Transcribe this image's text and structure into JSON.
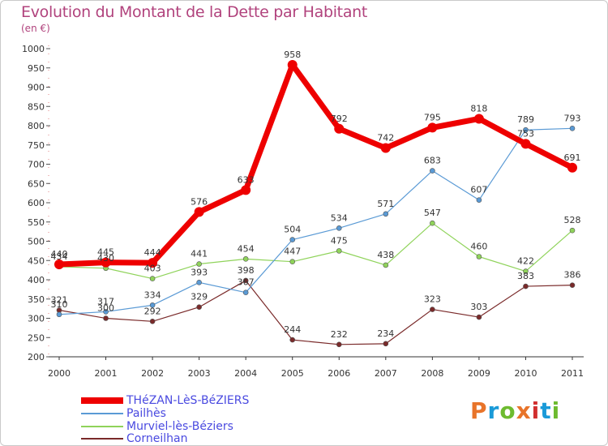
{
  "title": "Evolution du Montant de la Dette par Habitant",
  "subtitle": "(en €)",
  "logo": {
    "text": "Proxiti",
    "colors": [
      "#e8742a",
      "#1a9ad8",
      "#6dbb2f",
      "#e8742a",
      "#d12f2f",
      "#1a9ad8",
      "#6dbb2f"
    ]
  },
  "chart_data": {
    "type": "line",
    "title": "Evolution du Montant de la Dette par Habitant",
    "ylabel": "(en €)",
    "x": [
      "2000",
      "2001",
      "2002",
      "2003",
      "2004",
      "2005",
      "2006",
      "2007",
      "2008",
      "2009",
      "2010",
      "2011"
    ],
    "ylim": [
      200,
      1000
    ],
    "yticks": [
      200,
      250,
      300,
      350,
      400,
      450,
      500,
      550,
      600,
      650,
      700,
      750,
      800,
      850,
      900,
      950,
      1000
    ],
    "grid": false,
    "legend_position": "bottom-left",
    "series": [
      {
        "name": "THéZAN-LèS-BéZIERS",
        "color": "#ee0000",
        "values": [
          440,
          445,
          444,
          576,
          633,
          958,
          792,
          742,
          795,
          818,
          753,
          691
        ]
      },
      {
        "name": "Pailhès",
        "color": "#5a9ad5",
        "values": [
          310,
          317,
          334,
          393,
          367,
          504,
          534,
          571,
          683,
          607,
          789,
          793
        ]
      },
      {
        "name": "Murviel-lès-Béziers",
        "color": "#8fd35a",
        "values": [
          434,
          430,
          403,
          441,
          454,
          447,
          475,
          438,
          547,
          460,
          422,
          528
        ]
      },
      {
        "name": "Corneilhan",
        "color": "#7a2a2a",
        "values": [
          321,
          300,
          292,
          329,
          398,
          244,
          232,
          234,
          323,
          303,
          383,
          386
        ]
      }
    ]
  }
}
